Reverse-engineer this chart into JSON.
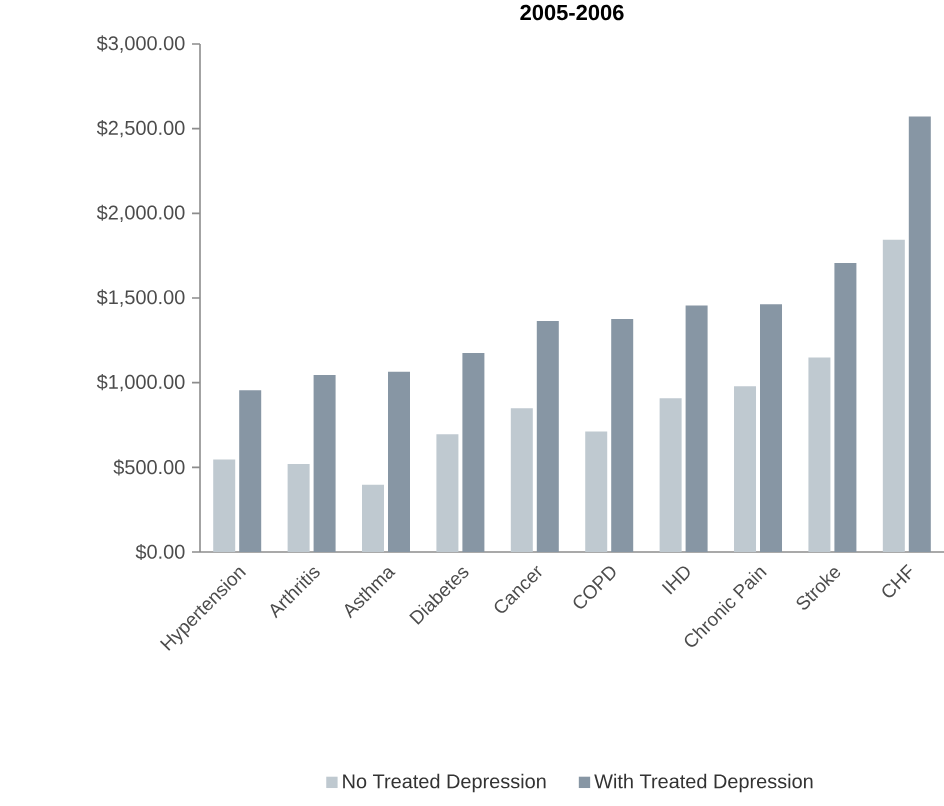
{
  "chart_data": {
    "type": "bar",
    "title": "2005-2006",
    "categories": [
      "Hypertension",
      "Arthritis",
      "Asthma",
      "Diabetes",
      "Cancer",
      "COPD",
      "IHD",
      "Chronic Pain",
      "Stroke",
      "CHF"
    ],
    "series": [
      {
        "name": "No Treated Depression",
        "color": "#bfc9d0",
        "values": [
          546,
          519,
          397,
          696,
          849,
          711,
          908,
          979,
          1148,
          1844
        ]
      },
      {
        "name": "With Treated Depression",
        "color": "#8796a4",
        "values": [
          955,
          1045,
          1065,
          1175,
          1364,
          1376,
          1455,
          1463,
          1706,
          2572
        ]
      }
    ],
    "ylim": [
      0,
      3000
    ],
    "yticks": [
      {
        "value": 0,
        "label": "$0.00"
      },
      {
        "value": 500,
        "label": "$500.00"
      },
      {
        "value": 1000,
        "label": "$1,000.00"
      },
      {
        "value": 1500,
        "label": "$1,500.00"
      },
      {
        "value": 2000,
        "label": "$2,000.00"
      },
      {
        "value": 2500,
        "label": "$2,500.00"
      },
      {
        "value": 3000,
        "label": "$3,000.00"
      }
    ],
    "grid": false,
    "legend": "bottom"
  }
}
